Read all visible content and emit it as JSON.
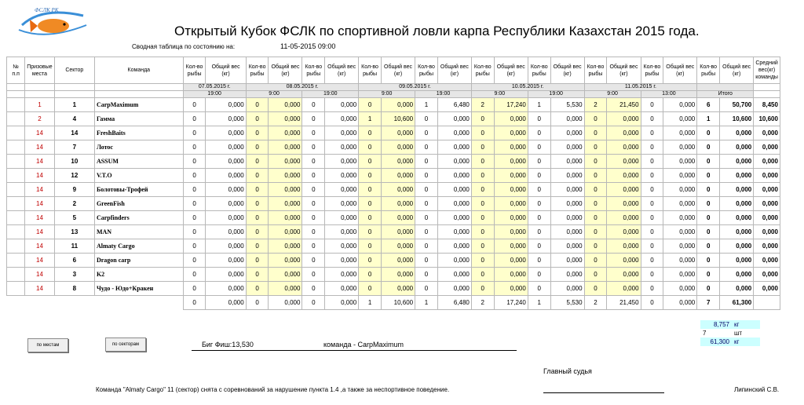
{
  "logo": {
    "text": "ФСЛК РК"
  },
  "title": "Открытый Кубок ФСЛК по спортивной ловли карпа Республики Казахстан 2015 года.",
  "status": {
    "label": "Сводная таблица по состоянию на:",
    "value": "11-05-2015 09:00"
  },
  "headers": {
    "n": "№ п.п",
    "place": "Призовые места",
    "sector": "Сектор",
    "team": "Команда",
    "count": "Кол-во рыбы",
    "weight": "Общий вес (кг)",
    "avg": "Средний вес(кг) команды"
  },
  "dates": [
    "07.05.2015 г.",
    "08.05.2015 г.",
    "09.05.2015 г.",
    "10.05.2015 г.",
    "11.05.2015 г."
  ],
  "times": [
    "19:00",
    "9:00",
    "19:00",
    "9:00",
    "19:00",
    "9:00",
    "19:00",
    "9:00",
    "13:00"
  ],
  "total_label": "Итого",
  "rows": [
    {
      "place": "1",
      "sector": "1",
      "team": "CarpMaximum",
      "p": [
        [
          "0",
          "0,000"
        ],
        [
          "0",
          "0,000"
        ],
        [
          "0",
          "0,000"
        ],
        [
          "0",
          "0,000"
        ],
        [
          "1",
          "6,480"
        ],
        [
          "2",
          "17,240"
        ],
        [
          "1",
          "5,530"
        ],
        [
          "2",
          "21,450"
        ],
        [
          "0",
          "0,000"
        ]
      ],
      "total": [
        "6",
        "50,700"
      ],
      "avg": "8,450"
    },
    {
      "place": "2",
      "sector": "4",
      "team": "Гамма",
      "p": [
        [
          "0",
          "0,000"
        ],
        [
          "0",
          "0,000"
        ],
        [
          "0",
          "0,000"
        ],
        [
          "1",
          "10,600"
        ],
        [
          "0",
          "0,000"
        ],
        [
          "0",
          "0,000"
        ],
        [
          "0",
          "0,000"
        ],
        [
          "0",
          "0,000"
        ],
        [
          "0",
          "0,000"
        ]
      ],
      "total": [
        "1",
        "10,600"
      ],
      "avg": "10,600"
    },
    {
      "place": "14",
      "sector": "14",
      "team": "FreshBaits",
      "p": [
        [
          "0",
          "0,000"
        ],
        [
          "0",
          "0,000"
        ],
        [
          "0",
          "0,000"
        ],
        [
          "0",
          "0,000"
        ],
        [
          "0",
          "0,000"
        ],
        [
          "0",
          "0,000"
        ],
        [
          "0",
          "0,000"
        ],
        [
          "0",
          "0,000"
        ],
        [
          "0",
          "0,000"
        ]
      ],
      "total": [
        "0",
        "0,000"
      ],
      "avg": "0,000"
    },
    {
      "place": "14",
      "sector": "7",
      "team": "Лотос",
      "p": [
        [
          "0",
          "0,000"
        ],
        [
          "0",
          "0,000"
        ],
        [
          "0",
          "0,000"
        ],
        [
          "0",
          "0,000"
        ],
        [
          "0",
          "0,000"
        ],
        [
          "0",
          "0,000"
        ],
        [
          "0",
          "0,000"
        ],
        [
          "0",
          "0,000"
        ],
        [
          "0",
          "0,000"
        ]
      ],
      "total": [
        "0",
        "0,000"
      ],
      "avg": "0,000"
    },
    {
      "place": "14",
      "sector": "10",
      "team": "ASSUM",
      "p": [
        [
          "0",
          "0,000"
        ],
        [
          "0",
          "0,000"
        ],
        [
          "0",
          "0,000"
        ],
        [
          "0",
          "0,000"
        ],
        [
          "0",
          "0,000"
        ],
        [
          "0",
          "0,000"
        ],
        [
          "0",
          "0,000"
        ],
        [
          "0",
          "0,000"
        ],
        [
          "0",
          "0,000"
        ]
      ],
      "total": [
        "0",
        "0,000"
      ],
      "avg": "0,000"
    },
    {
      "place": "14",
      "sector": "12",
      "team": "V.T.O",
      "p": [
        [
          "0",
          "0,000"
        ],
        [
          "0",
          "0,000"
        ],
        [
          "0",
          "0,000"
        ],
        [
          "0",
          "0,000"
        ],
        [
          "0",
          "0,000"
        ],
        [
          "0",
          "0,000"
        ],
        [
          "0",
          "0,000"
        ],
        [
          "0",
          "0,000"
        ],
        [
          "0",
          "0,000"
        ]
      ],
      "total": [
        "0",
        "0,000"
      ],
      "avg": "0,000"
    },
    {
      "place": "14",
      "sector": "9",
      "team": "Болотовы-Трофей",
      "p": [
        [
          "0",
          "0,000"
        ],
        [
          "0",
          "0,000"
        ],
        [
          "0",
          "0,000"
        ],
        [
          "0",
          "0,000"
        ],
        [
          "0",
          "0,000"
        ],
        [
          "0",
          "0,000"
        ],
        [
          "0",
          "0,000"
        ],
        [
          "0",
          "0,000"
        ],
        [
          "0",
          "0,000"
        ]
      ],
      "total": [
        "0",
        "0,000"
      ],
      "avg": "0,000"
    },
    {
      "place": "14",
      "sector": "2",
      "team": "GreenFish",
      "p": [
        [
          "0",
          "0,000"
        ],
        [
          "0",
          "0,000"
        ],
        [
          "0",
          "0,000"
        ],
        [
          "0",
          "0,000"
        ],
        [
          "0",
          "0,000"
        ],
        [
          "0",
          "0,000"
        ],
        [
          "0",
          "0,000"
        ],
        [
          "0",
          "0,000"
        ],
        [
          "0",
          "0,000"
        ]
      ],
      "total": [
        "0",
        "0,000"
      ],
      "avg": "0,000"
    },
    {
      "place": "14",
      "sector": "5",
      "team": "Carpfinders",
      "p": [
        [
          "0",
          "0,000"
        ],
        [
          "0",
          "0,000"
        ],
        [
          "0",
          "0,000"
        ],
        [
          "0",
          "0,000"
        ],
        [
          "0",
          "0,000"
        ],
        [
          "0",
          "0,000"
        ],
        [
          "0",
          "0,000"
        ],
        [
          "0",
          "0,000"
        ],
        [
          "0",
          "0,000"
        ]
      ],
      "total": [
        "0",
        "0,000"
      ],
      "avg": "0,000"
    },
    {
      "place": "14",
      "sector": "13",
      "team": "MAN",
      "p": [
        [
          "0",
          "0,000"
        ],
        [
          "0",
          "0,000"
        ],
        [
          "0",
          "0,000"
        ],
        [
          "0",
          "0,000"
        ],
        [
          "0",
          "0,000"
        ],
        [
          "0",
          "0,000"
        ],
        [
          "0",
          "0,000"
        ],
        [
          "0",
          "0,000"
        ],
        [
          "0",
          "0,000"
        ]
      ],
      "total": [
        "0",
        "0,000"
      ],
      "avg": "0,000"
    },
    {
      "place": "14",
      "sector": "11",
      "team": "Almaty Cargo",
      "p": [
        [
          "0",
          "0,000"
        ],
        [
          "0",
          "0,000"
        ],
        [
          "0",
          "0,000"
        ],
        [
          "0",
          "0,000"
        ],
        [
          "0",
          "0,000"
        ],
        [
          "0",
          "0,000"
        ],
        [
          "0",
          "0,000"
        ],
        [
          "0",
          "0,000"
        ],
        [
          "0",
          "0,000"
        ]
      ],
      "total": [
        "0",
        "0,000"
      ],
      "avg": "0,000"
    },
    {
      "place": "14",
      "sector": "6",
      "team": "Dragon carp",
      "p": [
        [
          "0",
          "0,000"
        ],
        [
          "0",
          "0,000"
        ],
        [
          "0",
          "0,000"
        ],
        [
          "0",
          "0,000"
        ],
        [
          "0",
          "0,000"
        ],
        [
          "0",
          "0,000"
        ],
        [
          "0",
          "0,000"
        ],
        [
          "0",
          "0,000"
        ],
        [
          "0",
          "0,000"
        ]
      ],
      "total": [
        "0",
        "0,000"
      ],
      "avg": "0,000"
    },
    {
      "place": "14",
      "sector": "3",
      "team": "K2",
      "p": [
        [
          "0",
          "0,000"
        ],
        [
          "0",
          "0,000"
        ],
        [
          "0",
          "0,000"
        ],
        [
          "0",
          "0,000"
        ],
        [
          "0",
          "0,000"
        ],
        [
          "0",
          "0,000"
        ],
        [
          "0",
          "0,000"
        ],
        [
          "0",
          "0,000"
        ],
        [
          "0",
          "0,000"
        ]
      ],
      "total": [
        "0",
        "0,000"
      ],
      "avg": "0,000"
    },
    {
      "place": "14",
      "sector": "8",
      "team": "Чудо - Юдо+Кракен",
      "p": [
        [
          "0",
          "0,000"
        ],
        [
          "0",
          "0,000"
        ],
        [
          "0",
          "0,000"
        ],
        [
          "0",
          "0,000"
        ],
        [
          "0",
          "0,000"
        ],
        [
          "0",
          "0,000"
        ],
        [
          "0",
          "0,000"
        ],
        [
          "0",
          "0,000"
        ],
        [
          "0",
          "0,000"
        ]
      ],
      "total": [
        "0",
        "0,000"
      ],
      "avg": "0,000"
    }
  ],
  "totals": {
    "p": [
      [
        "0",
        "0,000"
      ],
      [
        "0",
        "0,000"
      ],
      [
        "0",
        "0,000"
      ],
      [
        "1",
        "10,600"
      ],
      [
        "1",
        "6,480"
      ],
      [
        "2",
        "17,240"
      ],
      [
        "1",
        "5,530"
      ],
      [
        "2",
        "21,450"
      ],
      [
        "0",
        "0,000"
      ]
    ],
    "total": [
      "7",
      "61,300"
    ]
  },
  "buttons": {
    "by_places": "по местам",
    "by_sectors": "по секторам"
  },
  "big_fish": {
    "label": "Биг Фиш:13,530",
    "team": "команда - CarpMaximum"
  },
  "summary": [
    {
      "value": "8,757",
      "unit": "кг"
    },
    {
      "value": "7",
      "unit": "шт"
    },
    {
      "value": "61,300",
      "unit": "кг"
    }
  ],
  "judge": {
    "label": "Главный судья",
    "name": "Липинский С.В."
  },
  "note": "Команда \"Almaty Cargo\" 11 (сектор) снята с соревнований за нарушение пункта 1.4 ,а также за неспортивное поведение.",
  "colors": {
    "place_red": "#c00000",
    "period_yellow": "#ffffcc",
    "period_grey": "#e9e9e9",
    "summary_cyan": "#ccffff"
  },
  "icons": {
    "logo": "fish-logo-icon"
  }
}
